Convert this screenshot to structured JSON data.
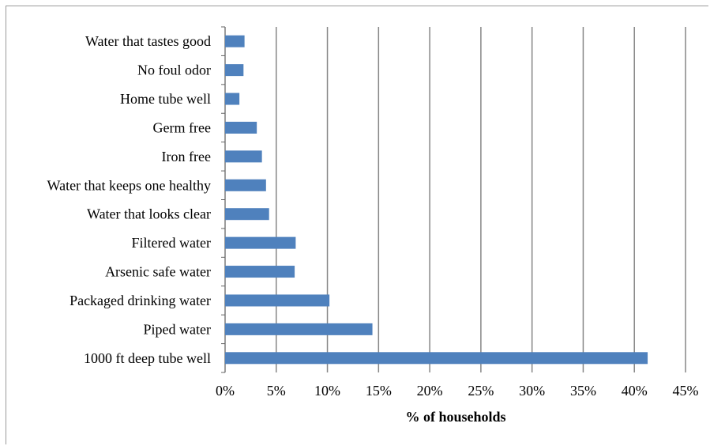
{
  "chart_data": {
    "type": "bar",
    "orientation": "horizontal",
    "categories": [
      "Water that tastes good",
      "No foul odor",
      "Home tube well",
      "Germ free",
      "Iron free",
      "Water that keeps one healthy",
      "Water that looks clear",
      "Filtered water",
      "Arsenic safe water",
      "Packaged drinking water",
      "Piped water",
      "1000 ft deep tube well"
    ],
    "values": [
      1.9,
      1.8,
      1.4,
      3.1,
      3.6,
      4.0,
      4.3,
      6.9,
      6.8,
      10.2,
      14.4,
      41.3
    ],
    "xlabel": "% of households",
    "ylabel": "",
    "xlim": [
      0,
      45
    ],
    "xticks": [
      0,
      5,
      10,
      15,
      20,
      25,
      30,
      35,
      40,
      45
    ],
    "xtick_labels": [
      "0%",
      "5%",
      "10%",
      "15%",
      "20%",
      "25%",
      "30%",
      "35%",
      "40%",
      "45%"
    ],
    "grid": "vertical",
    "legend": "none",
    "colors": {
      "bar": "#4f81bd",
      "grid": "#868686",
      "frame": "#9a9a9a"
    }
  }
}
